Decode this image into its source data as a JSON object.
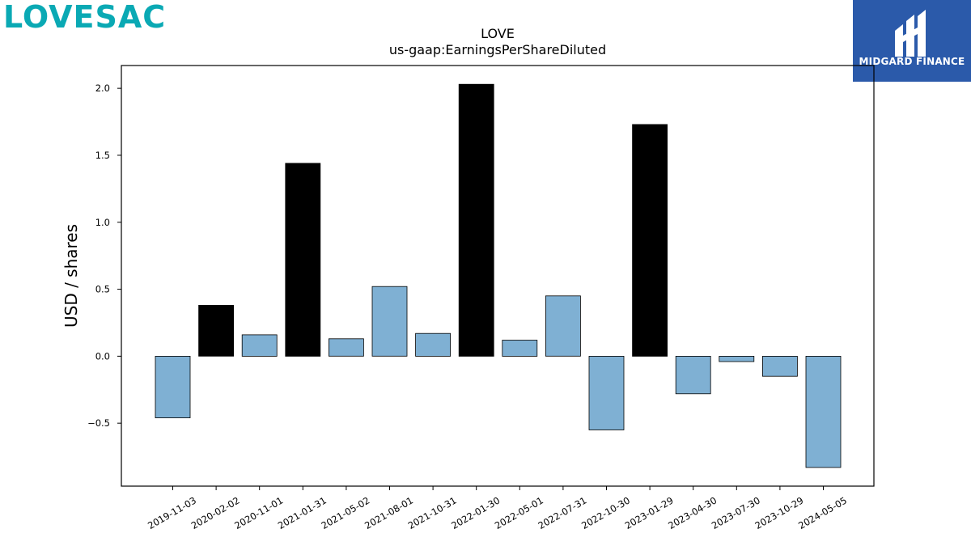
{
  "brand": {
    "logo_text": "LOVESAC",
    "logo_color": "#0aa9b4"
  },
  "badge": {
    "text": "MIDGARD FINANCE",
    "background": "#2b5aaa",
    "icon": "midgard-logo-icon"
  },
  "chart_data": {
    "type": "bar",
    "title": "LOVE",
    "subtitle": "us-gaap:EarningsPerShareDiluted",
    "xlabel": "",
    "ylabel": "USD / shares",
    "ylim": [
      -0.97,
      2.17
    ],
    "yticks": [
      -0.5,
      0.0,
      0.5,
      1.0,
      1.5,
      2.0
    ],
    "ytick_labels": [
      "−0.5",
      "0.0",
      "0.5",
      "1.0",
      "1.5",
      "2.0"
    ],
    "grid": false,
    "categories": [
      "2019-11-03",
      "2020-02-02",
      "2020-11-01",
      "2021-01-31",
      "2021-05-02",
      "2021-08-01",
      "2021-10-31",
      "2022-01-30",
      "2022-05-01",
      "2022-07-31",
      "2022-10-30",
      "2023-01-29",
      "2023-04-30",
      "2023-07-30",
      "2023-10-29",
      "2024-05-05"
    ],
    "values": [
      -0.46,
      0.38,
      0.16,
      1.44,
      0.13,
      0.52,
      0.17,
      2.03,
      0.12,
      0.45,
      -0.55,
      1.73,
      -0.28,
      -0.04,
      -0.15,
      -0.83
    ],
    "bar_colors": [
      "#7fb0d3",
      "#000000",
      "#7fb0d3",
      "#000000",
      "#7fb0d3",
      "#7fb0d3",
      "#7fb0d3",
      "#000000",
      "#7fb0d3",
      "#7fb0d3",
      "#7fb0d3",
      "#000000",
      "#7fb0d3",
      "#7fb0d3",
      "#7fb0d3",
      "#7fb0d3"
    ]
  }
}
